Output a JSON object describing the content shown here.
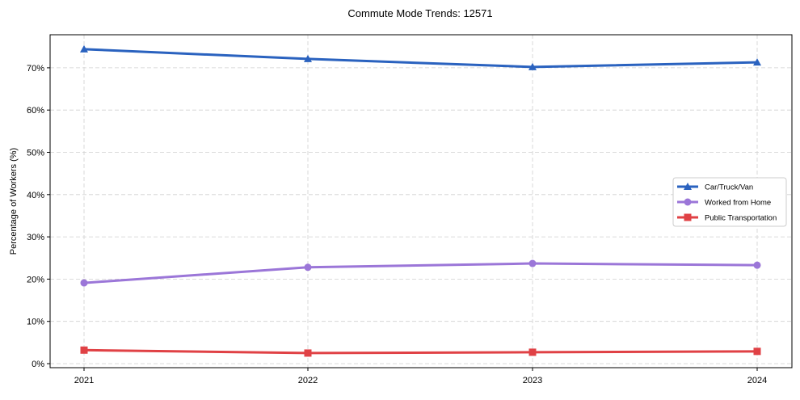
{
  "chart_data": {
    "type": "line",
    "title": "Commute Mode Trends: 12571",
    "xlabel": "",
    "ylabel": "Percentage of Workers (%)",
    "x": [
      "2021",
      "2022",
      "2023",
      "2024"
    ],
    "ylim": [
      -1,
      78
    ],
    "yticks": [
      0,
      10,
      20,
      30,
      40,
      50,
      60,
      70
    ],
    "ytick_labels": [
      "0%",
      "10%",
      "20%",
      "30%",
      "40%",
      "50%",
      "60%",
      "70%"
    ],
    "grid": true,
    "legend_position": "center-right",
    "series": [
      {
        "name": "Car/Truck/Van",
        "color": "#2a62bf",
        "marker": "triangle",
        "values": [
          74.4,
          72.1,
          70.2,
          71.3
        ]
      },
      {
        "name": "Worked from Home",
        "color": "#9b76d8",
        "marker": "circle",
        "values": [
          19.1,
          22.8,
          23.7,
          23.3
        ]
      },
      {
        "name": "Public Transportation",
        "color": "#e04145",
        "marker": "square",
        "values": [
          3.2,
          2.5,
          2.7,
          2.9
        ]
      }
    ]
  }
}
